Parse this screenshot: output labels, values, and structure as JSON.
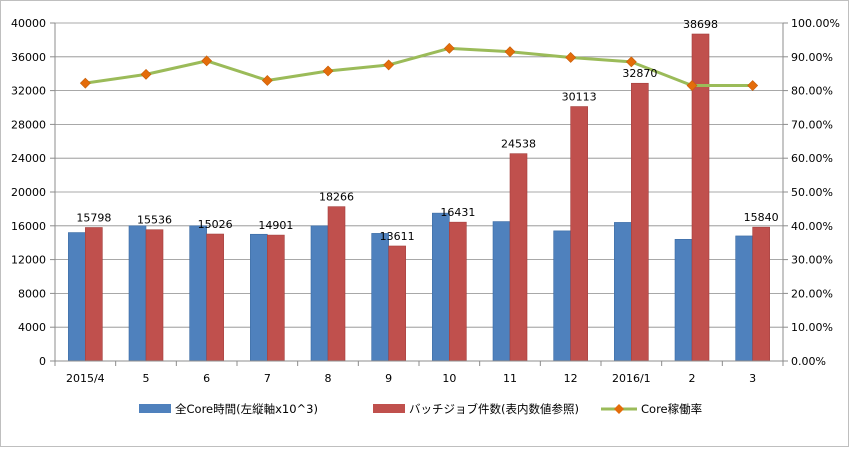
{
  "chart_data": {
    "type": "bar",
    "categories": [
      "2015/4",
      "5",
      "6",
      "7",
      "8",
      "9",
      "10",
      "11",
      "12",
      "2016/1",
      "2",
      "3"
    ],
    "series": [
      {
        "name": "全Core時間(左縦軸x10^3)",
        "kind": "bar",
        "axis": "left",
        "values": [
          15200,
          16000,
          16000,
          15000,
          16000,
          15100,
          17500,
          16500,
          15400,
          16400,
          14400,
          14800
        ],
        "color": "#4f81bd",
        "labels": []
      },
      {
        "name": "バッチジョブ件数(表内数値参照)",
        "kind": "bar",
        "axis": "left",
        "values": [
          15798,
          15536,
          15026,
          14901,
          18266,
          13611,
          16431,
          24538,
          30113,
          32870,
          38698,
          15840
        ],
        "color": "#c0504d",
        "labels": [
          "15798",
          "15536",
          "15026",
          "14901",
          "18266",
          "13611",
          "16431",
          "24538",
          "30113",
          "32870",
          "38698",
          "15840"
        ]
      },
      {
        "name": "Core稼働率",
        "kind": "line",
        "axis": "right",
        "values": [
          0.822,
          0.848,
          0.888,
          0.83,
          0.858,
          0.876,
          0.925,
          0.915,
          0.898,
          0.885,
          0.815,
          0.815
        ],
        "color": "#9bbb59",
        "marker_color": "#e46c0a"
      }
    ],
    "left_axis": {
      "ylim": [
        0,
        40000
      ],
      "ticks": [
        0,
        4000,
        8000,
        12000,
        16000,
        20000,
        24000,
        28000,
        32000,
        36000,
        40000
      ],
      "tick_labels": [
        "0",
        "4000",
        "8000",
        "12000",
        "16000",
        "20000",
        "24000",
        "28000",
        "32000",
        "36000",
        "40000"
      ]
    },
    "right_axis": {
      "ylim": [
        0,
        1
      ],
      "ticks": [
        0,
        0.1,
        0.2,
        0.3,
        0.4,
        0.5,
        0.6,
        0.7,
        0.8,
        0.9,
        1.0
      ],
      "tick_labels": [
        "0.00%",
        "10.00%",
        "20.00%",
        "30.00%",
        "40.00%",
        "50.00%",
        "60.00%",
        "70.00%",
        "80.00%",
        "90.00%",
        "100.00%"
      ]
    },
    "title": "",
    "xlabel": "",
    "ylabel": "",
    "grid": "horizontal",
    "legend_position": "bottom"
  }
}
